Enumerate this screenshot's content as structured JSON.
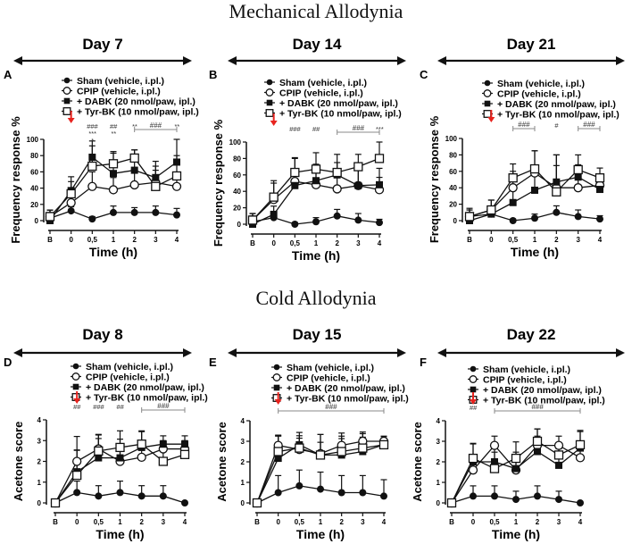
{
  "sections": [
    {
      "title": "Mechanical Allodynia"
    },
    {
      "title": "Cold Allodynia"
    }
  ],
  "colors": {
    "line": "#111111",
    "arrow": "#e8231e",
    "bracket": "#888888"
  },
  "legend": [
    "Sham (vehicle, i.pl.)",
    "CPIP (vehicle, i.pl.)",
    "+ DABK (20 nmol/paw, ipl.)",
    "+ Tyr-BK (10 nmol/paw, ipl.)"
  ],
  "chart_data": [
    {
      "panel": "A",
      "day": "Day 7",
      "type": "line",
      "xlabel": "Time (h)",
      "ylabel": "Frequency response %",
      "ylim": [
        0,
        100
      ],
      "yticks": [
        "0",
        "20",
        "40",
        "60",
        "80",
        "100"
      ],
      "categories": [
        "B",
        "0",
        "0,5",
        "1",
        "2",
        "3",
        "4"
      ],
      "series": [
        {
          "name": "Sham (vehicle, i.pl.)",
          "marker": "filled-circle",
          "values": [
            3,
            12,
            2,
            10,
            10,
            10,
            7
          ],
          "error": [
            10,
            5,
            3,
            8,
            6,
            8,
            8
          ]
        },
        {
          "name": "CPIP (vehicle, i.pl.)",
          "marker": "open-circle",
          "values": [
            5,
            22,
            42,
            38,
            44,
            47,
            42
          ],
          "error": [
            8,
            15,
            18,
            15,
            15,
            15,
            15
          ]
        },
        {
          "name": "+ DABK (20 nmol/paw, ipl.)",
          "marker": "filled-square",
          "values": [
            0,
            37,
            78,
            58,
            62,
            53,
            72
          ],
          "error": [
            10,
            17,
            20,
            25,
            25,
            20,
            28
          ]
        },
        {
          "name": "+ Tyr-BK (10 nmol/paw, ipl.)",
          "marker": "open-square",
          "values": [
            5,
            33,
            67,
            70,
            77,
            42,
            55
          ],
          "error": [
            8,
            15,
            25,
            15,
            10,
            25,
            25
          ]
        }
      ],
      "annotations": [
        {
          "x": "0,5",
          "lines": [
            "###",
            "***",
            "*"
          ]
        },
        {
          "x": "1",
          "lines": [
            "##",
            "**"
          ]
        },
        {
          "x": "2",
          "lines": [
            "**"
          ]
        },
        {
          "x": "4",
          "lines": [
            "**"
          ]
        },
        {
          "bracket": [
            "2",
            "4"
          ],
          "text": "###"
        }
      ]
    },
    {
      "panel": "B",
      "day": "Day 14",
      "type": "line",
      "xlabel": "Time (h)",
      "ylabel": "Frequency response %",
      "ylim": [
        0,
        100
      ],
      "yticks": [
        "0",
        "20",
        "40",
        "60",
        "80",
        "100"
      ],
      "categories": [
        "B",
        "0",
        "0,5",
        "1",
        "2",
        "3",
        "4"
      ],
      "series": [
        {
          "name": "Sham (vehicle, i.pl.)",
          "marker": "filled-circle",
          "values": [
            3,
            8,
            0,
            3,
            10,
            5,
            2
          ],
          "error": [
            10,
            4,
            2,
            5,
            8,
            8,
            4
          ]
        },
        {
          "name": "CPIP (vehicle, i.pl.)",
          "marker": "open-circle",
          "values": [
            5,
            30,
            52,
            48,
            43,
            47,
            42
          ],
          "error": [
            8,
            20,
            28,
            20,
            20,
            20,
            15
          ]
        },
        {
          "name": "+ DABK (20 nmol/paw, ipl.)",
          "marker": "filled-square",
          "values": [
            0,
            12,
            47,
            53,
            60,
            47,
            48
          ],
          "error": [
            10,
            10,
            20,
            20,
            15,
            20,
            20
          ]
        },
        {
          "name": "+ Tyr-BK (10 nmol/paw, ipl.)",
          "marker": "open-square",
          "values": [
            5,
            33,
            63,
            67,
            63,
            70,
            80
          ],
          "error": [
            8,
            20,
            18,
            20,
            22,
            15,
            20
          ]
        }
      ],
      "annotations": [
        {
          "x": "0,5",
          "lines": [
            "###"
          ]
        },
        {
          "x": "1",
          "lines": [
            "##"
          ]
        },
        {
          "x": "4",
          "lines": [
            "***"
          ]
        },
        {
          "bracket": [
            "2",
            "4"
          ],
          "text": "###"
        }
      ]
    },
    {
      "panel": "C",
      "day": "Day 21",
      "type": "line",
      "xlabel": "Time (h)",
      "ylabel": "Frequency response %",
      "ylim": [
        0,
        100
      ],
      "yticks": [
        "0",
        "20",
        "40",
        "60",
        "80",
        "100"
      ],
      "categories": [
        "B",
        "0",
        "0,5",
        "1",
        "2",
        "3",
        "4"
      ],
      "series": [
        {
          "name": "Sham (vehicle, i.pl.)",
          "marker": "filled-circle",
          "values": [
            5,
            8,
            0,
            3,
            10,
            5,
            2
          ],
          "error": [
            10,
            5,
            2,
            5,
            8,
            8,
            4
          ]
        },
        {
          "name": "CPIP (vehicle, i.pl.)",
          "marker": "open-circle",
          "values": [
            5,
            13,
            40,
            58,
            40,
            40,
            43
          ],
          "error": [
            8,
            12,
            20,
            27,
            40,
            20,
            12
          ]
        },
        {
          "name": "+ DABK (20 nmol/paw, ipl.)",
          "marker": "filled-square",
          "values": [
            0,
            8,
            22,
            37,
            47,
            53,
            38
          ],
          "error": [
            10,
            8,
            15,
            20,
            20,
            15,
            15
          ]
        },
        {
          "name": "+ Tyr-BK (10 nmol/paw, ipl.)",
          "marker": "open-square",
          "values": [
            5,
            13,
            52,
            63,
            35,
            62,
            52
          ],
          "error": [
            8,
            12,
            17,
            22,
            45,
            18,
            12
          ]
        }
      ],
      "annotations": [
        {
          "x": "2",
          "lines": [
            "#"
          ]
        },
        {
          "bracket": [
            "0,5",
            "1"
          ],
          "text": "###"
        },
        {
          "bracket": [
            "3",
            "4"
          ],
          "text": "###"
        }
      ]
    },
    {
      "panel": "D",
      "day": "Day 8",
      "type": "line",
      "xlabel": "Time (h)",
      "ylabel": "Acetone score",
      "ylim": [
        0,
        4
      ],
      "yticks": [
        "0",
        "1",
        "2",
        "3",
        "4"
      ],
      "categories": [
        "B",
        "0",
        "0,5",
        "1",
        "2",
        "3",
        "4"
      ],
      "series": [
        {
          "name": "Sham (vehicle, i.pl.)",
          "marker": "filled-circle",
          "values": [
            0,
            0.5,
            0.33,
            0.5,
            0.33,
            0.33,
            0
          ],
          "error": [
            0,
            0.55,
            0.5,
            0.55,
            0.5,
            0.5,
            0
          ]
        },
        {
          "name": "CPIP (vehicle, i.pl.)",
          "marker": "open-circle",
          "values": [
            0,
            2,
            2.6,
            2,
            2.2,
            2.6,
            2.6
          ],
          "error": [
            0,
            0.55,
            0.5,
            0.5,
            0.5,
            0.4,
            0.4
          ]
        },
        {
          "name": "+ DABK (20 nmol/paw, ipl.)",
          "marker": "filled-square",
          "values": [
            0,
            1.5,
            2.17,
            2.17,
            2.67,
            2.83,
            2.83
          ],
          "error": [
            0,
            1.7,
            1.1,
            0.9,
            0.8,
            0.4,
            0.4
          ]
        },
        {
          "name": "+ Tyr-BK (10 nmol/paw, ipl.)",
          "marker": "open-square",
          "values": [
            0,
            1.33,
            2.5,
            2.67,
            2.83,
            2,
            2.33
          ],
          "error": [
            0,
            1.2,
            0.8,
            0.8,
            0.6,
            0.6,
            0.6
          ]
        }
      ],
      "annotations": [
        {
          "x": "0",
          "lines": [
            "##"
          ]
        },
        {
          "x": "0,5",
          "lines": [
            "###"
          ]
        },
        {
          "x": "1",
          "lines": [
            "##"
          ]
        },
        {
          "bracket": [
            "2",
            "4"
          ],
          "text": "###"
        }
      ]
    },
    {
      "panel": "E",
      "day": "Day 15",
      "type": "line",
      "xlabel": "Time (h)",
      "ylabel": "Acetone score",
      "ylim": [
        0,
        4
      ],
      "yticks": [
        "0",
        "1",
        "2",
        "3",
        "4"
      ],
      "categories": [
        "B",
        "0",
        "0,5",
        "1",
        "2",
        "3",
        "4"
      ],
      "series": [
        {
          "name": "Sham (vehicle, i.pl.)",
          "marker": "filled-circle",
          "values": [
            0,
            0.5,
            0.83,
            0.67,
            0.5,
            0.5,
            0.33
          ],
          "error": [
            0,
            0.83,
            0.77,
            0.83,
            0.83,
            0.83,
            0.8
          ]
        },
        {
          "name": "CPIP (vehicle, i.pl.)",
          "marker": "open-circle",
          "values": [
            0,
            2.8,
            2.6,
            2.4,
            2.8,
            3,
            3
          ],
          "error": [
            0,
            0.45,
            0.55,
            0.55,
            0.45,
            0.45,
            0.25
          ]
        },
        {
          "name": "+ DABK (20 nmol/paw, ipl.)",
          "marker": "filled-square",
          "values": [
            0,
            2.17,
            2.83,
            2.33,
            2.33,
            2.5,
            2.83
          ],
          "error": [
            0,
            1.1,
            0.6,
            1,
            0.8,
            0.7,
            0.4
          ]
        },
        {
          "name": "+ Tyr-BK (10 nmol/paw, ipl.)",
          "marker": "open-square",
          "values": [
            0,
            2.5,
            2.67,
            2.33,
            2.5,
            2.67,
            2.83
          ],
          "error": [
            0,
            0.8,
            0.6,
            1,
            0.9,
            0.7,
            0.4
          ]
        }
      ],
      "annotations": [
        {
          "bracket": [
            "0",
            "4"
          ],
          "text": "###"
        }
      ]
    },
    {
      "panel": "F",
      "day": "Day 22",
      "type": "line",
      "xlabel": "Time (h)",
      "ylabel": "Acetone score",
      "ylim": [
        0,
        4
      ],
      "yticks": [
        "0",
        "1",
        "2",
        "3",
        "4"
      ],
      "categories": [
        "B",
        "0",
        "0,5",
        "1",
        "2",
        "3",
        "4"
      ],
      "series": [
        {
          "name": "Sham (vehicle, i.pl.)",
          "marker": "filled-circle",
          "values": [
            0,
            0.33,
            0.33,
            0.17,
            0.33,
            0.17,
            0
          ],
          "error": [
            0,
            0.5,
            0.5,
            0.4,
            0.5,
            0.4,
            0
          ]
        },
        {
          "name": "CPIP (vehicle, i.pl.)",
          "marker": "open-circle",
          "values": [
            0,
            1.6,
            2.8,
            1.6,
            2.8,
            2.8,
            2.2
          ],
          "error": [
            0,
            0.55,
            0.45,
            0.55,
            0.45,
            0.45,
            0.45
          ]
        },
        {
          "name": "+ DABK (20 nmol/paw, ipl.)",
          "marker": "filled-square",
          "values": [
            0,
            2,
            2,
            1.67,
            2.5,
            1.83,
            2.67
          ],
          "error": [
            0,
            0.9,
            0.8,
            0.8,
            1.1,
            0.8,
            0.8
          ]
        },
        {
          "name": "+ Tyr-BK (10 nmol/paw, ipl.)",
          "marker": "open-square",
          "values": [
            0,
            2.17,
            1.67,
            2.17,
            3,
            2.33,
            2.83
          ],
          "error": [
            0,
            0.7,
            0.8,
            0.8,
            0.6,
            0.6,
            0.7
          ]
        }
      ],
      "annotations": [
        {
          "x": "0",
          "lines": [
            "##"
          ]
        },
        {
          "bracket": [
            "0,5",
            "4"
          ],
          "text": "###"
        }
      ]
    }
  ]
}
